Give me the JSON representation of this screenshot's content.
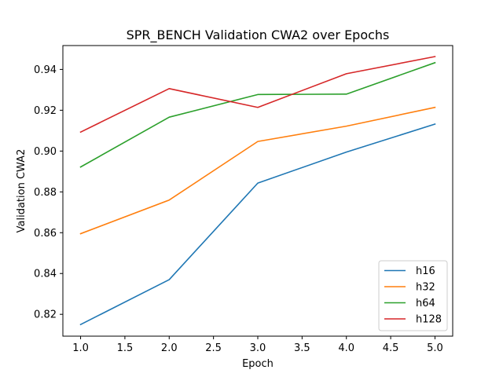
{
  "chart_data": {
    "type": "line",
    "title": "SPR_BENCH Validation CWA2 over Epochs",
    "xlabel": "Epoch",
    "ylabel": "Validation CWA2",
    "x": [
      1,
      2,
      3,
      4,
      5
    ],
    "xlim": [
      0.8,
      5.2
    ],
    "ylim": [
      0.8093,
      0.9517
    ],
    "xticks": [
      1.0,
      1.5,
      2.0,
      2.5,
      3.0,
      3.5,
      4.0,
      4.5,
      5.0
    ],
    "xtick_labels": [
      "1.0",
      "1.5",
      "2.0",
      "2.5",
      "3.0",
      "3.5",
      "4.0",
      "4.5",
      "5.0"
    ],
    "yticks": [
      0.82,
      0.84,
      0.86,
      0.88,
      0.9,
      0.92,
      0.94
    ],
    "ytick_labels": [
      "0.82",
      "0.84",
      "0.86",
      "0.88",
      "0.90",
      "0.92",
      "0.94"
    ],
    "grid": false,
    "legend_position": "bottom-right",
    "series": [
      {
        "name": "h16",
        "color": "#1f77b4",
        "values": [
          0.815,
          0.837,
          0.8843,
          0.8995,
          0.9132
        ]
      },
      {
        "name": "h32",
        "color": "#ff7f0e",
        "values": [
          0.8595,
          0.876,
          0.9047,
          0.9122,
          0.9214
        ]
      },
      {
        "name": "h64",
        "color": "#2ca02c",
        "values": [
          0.8922,
          0.9166,
          0.9277,
          0.9279,
          0.9433
        ]
      },
      {
        "name": "h128",
        "color": "#d62728",
        "values": [
          0.9093,
          0.9306,
          0.9214,
          0.9379,
          0.9463
        ]
      }
    ]
  }
}
